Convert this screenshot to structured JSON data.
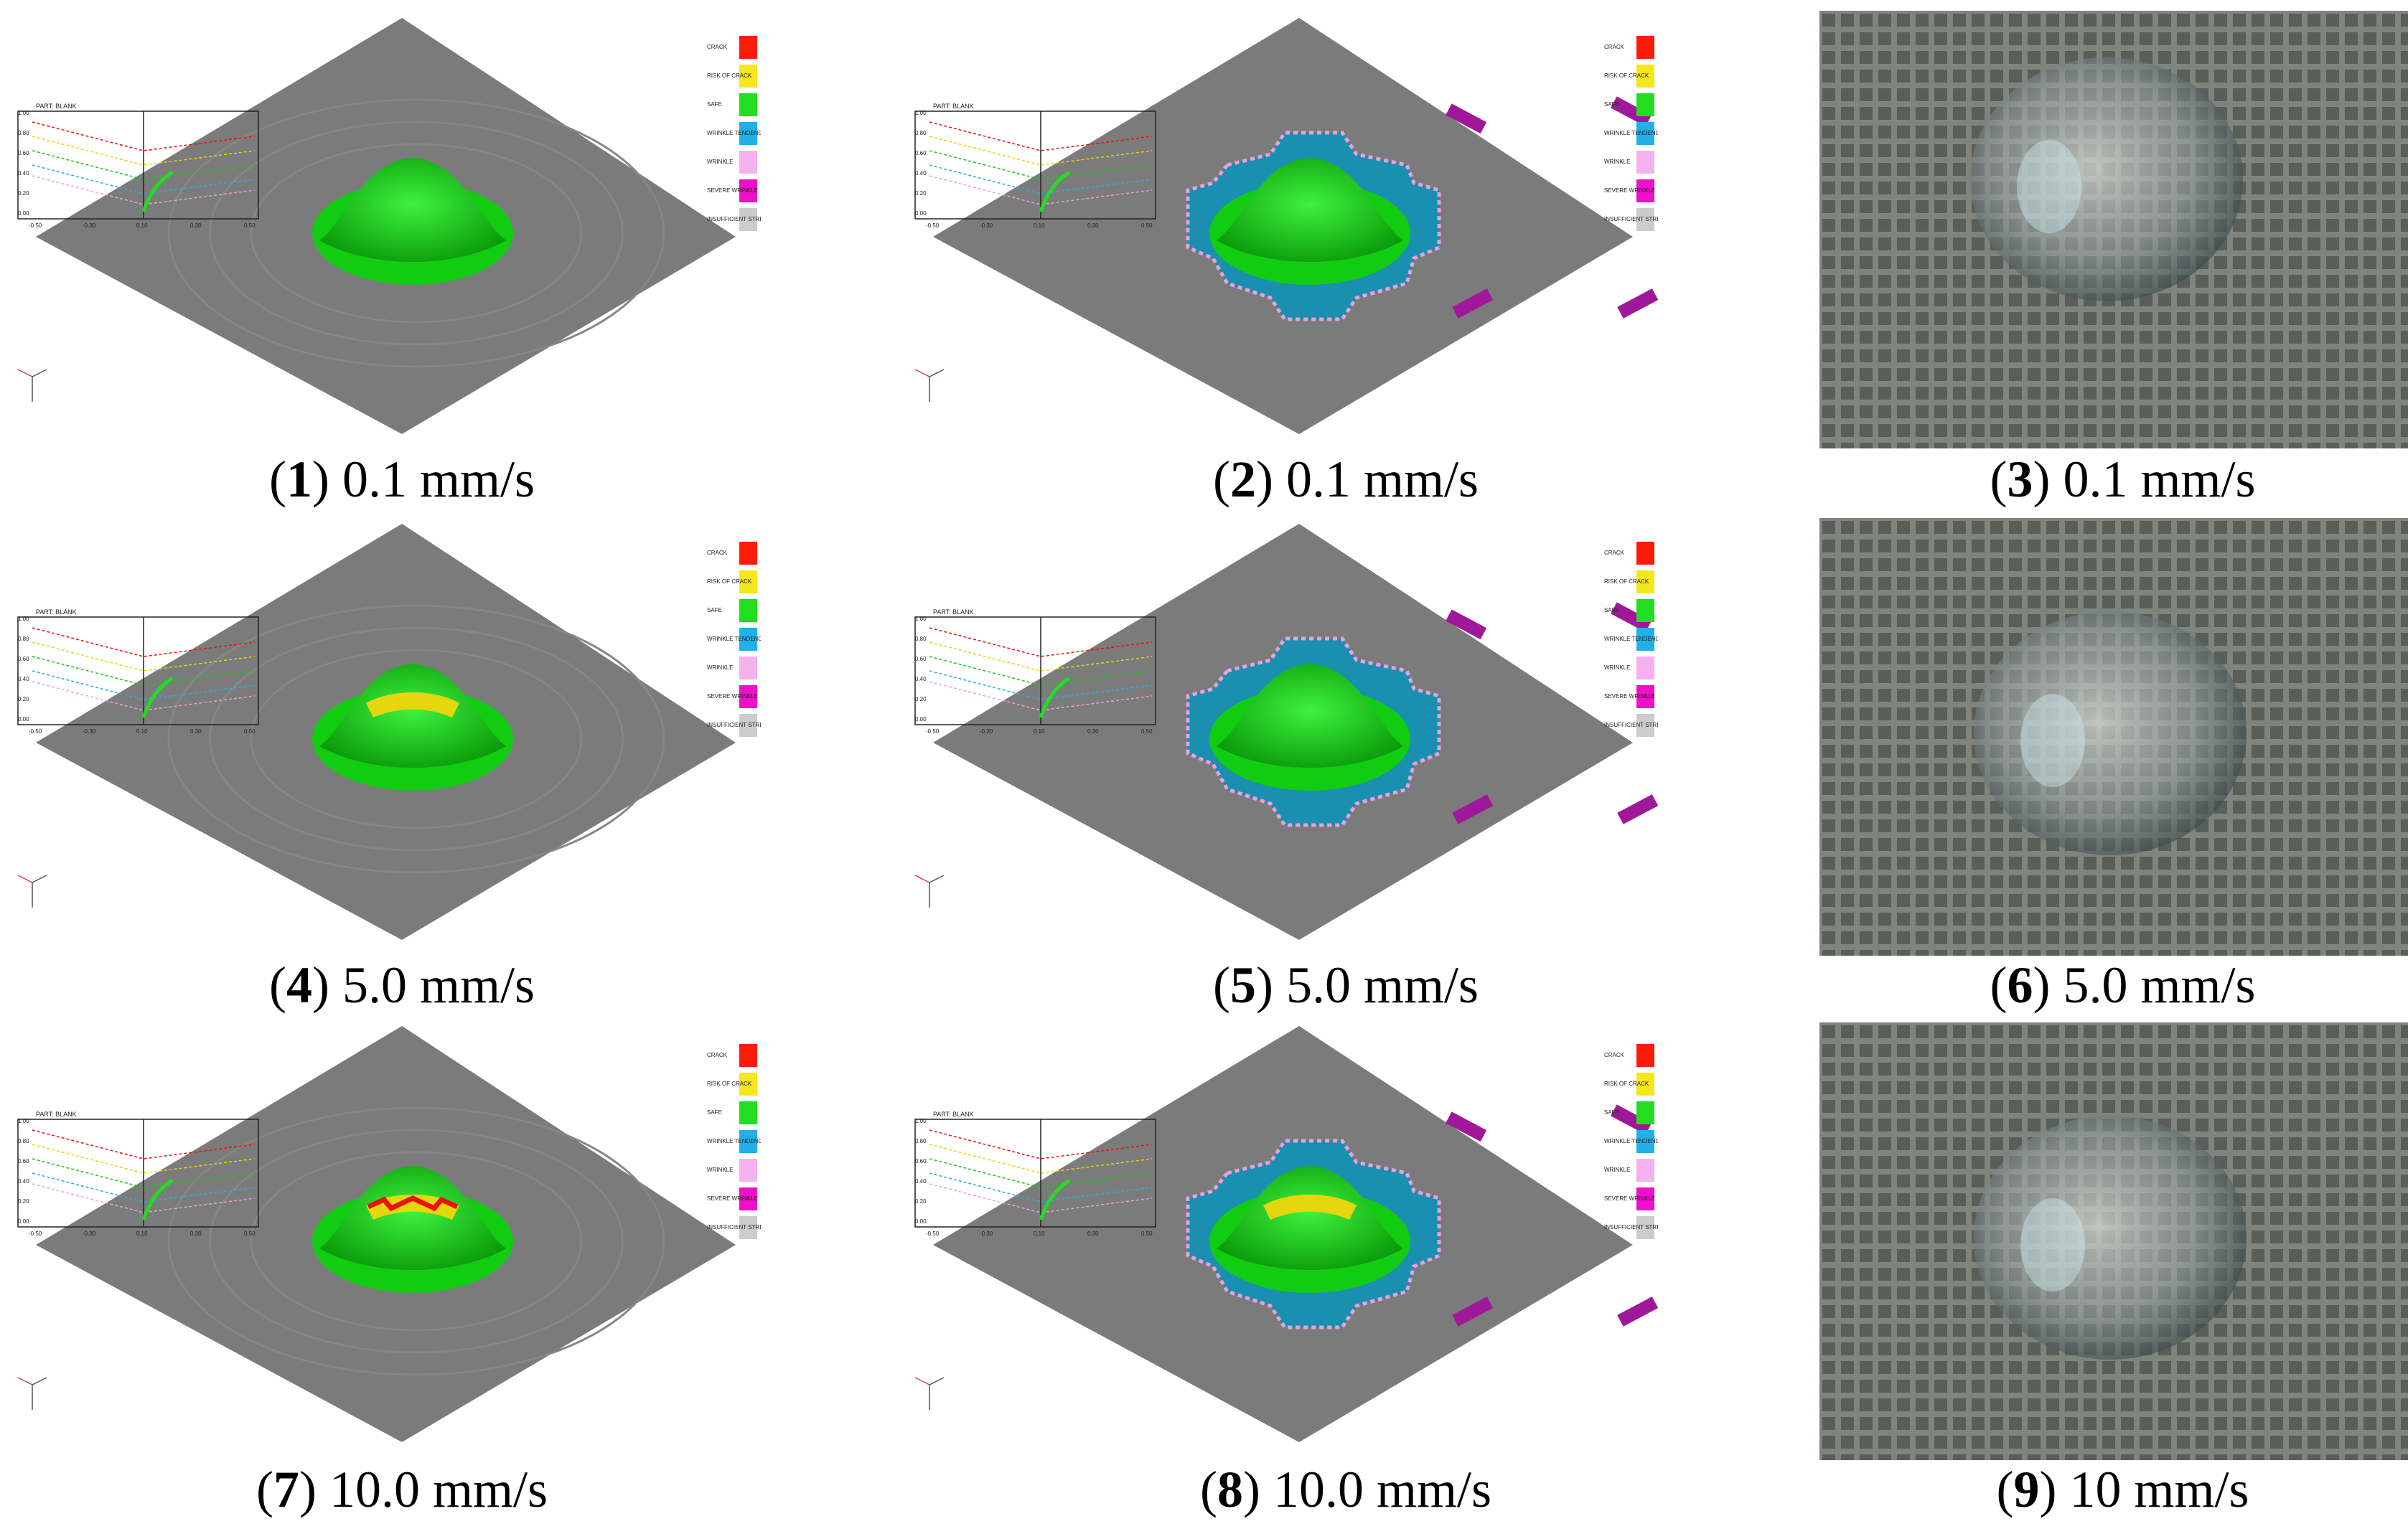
{
  "colors": {
    "plate": "#7b7b7b",
    "plate_edge": "#6d6d6d",
    "safe": "#12cc12",
    "safe_light": "#3ef23e",
    "risk": "#e6d610",
    "crack": "#e8140a",
    "wrinkle_tendency": "#1a8fb0",
    "wrinkle": "#e8a2e0",
    "severe_wrinkle": "#a0189a",
    "insufficient": "#c8c8c8"
  },
  "fld": {
    "title": "PART: BLANK",
    "y_ticks": [
      "1.00",
      "0.80",
      "0.60",
      "0.40",
      "0.20",
      "0.00"
    ],
    "x_ticks": [
      "-0.50",
      "-0.30",
      "0.10",
      "0.30",
      "0.50"
    ]
  },
  "legend": [
    {
      "label": "CRACK",
      "color": "#ff1a0a"
    },
    {
      "label": "RISK OF CRACK",
      "color": "#f5e61e"
    },
    {
      "label": "SAFE",
      "color": "#22dd22"
    },
    {
      "label": "WRINKLE TENDENCY",
      "color": "#22b0e8"
    },
    {
      "label": "WRINKLE",
      "color": "#f5b0ee"
    },
    {
      "label": "SEVERE WRINKLE",
      "color": "#ee10c8"
    },
    {
      "label": "INSUFFICIENT STRETCH",
      "color": "#cccccc"
    }
  ],
  "panels": [
    {
      "num": "1",
      "speed": "0.1 mm/s",
      "kind": "sim",
      "wrinkled": false,
      "dome": "safe"
    },
    {
      "num": "2",
      "speed": "0.1 mm/s",
      "kind": "sim",
      "wrinkled": true,
      "dome": "safe"
    },
    {
      "num": "3",
      "speed": "0.1 mm/s",
      "kind": "photo"
    },
    {
      "num": "4",
      "speed": "5.0 mm/s",
      "kind": "sim",
      "wrinkled": false,
      "dome": "risk"
    },
    {
      "num": "5",
      "speed": "5.0 mm/s",
      "kind": "sim",
      "wrinkled": true,
      "dome": "safe"
    },
    {
      "num": "6",
      "speed": "5.0 mm/s",
      "kind": "photo"
    },
    {
      "num": "7",
      "speed": "10.0 mm/s",
      "kind": "sim",
      "wrinkled": false,
      "dome": "crack"
    },
    {
      "num": "8",
      "speed": "10.0 mm/s",
      "kind": "sim",
      "wrinkled": true,
      "dome": "risk"
    },
    {
      "num": "9",
      "speed": "10 mm/s",
      "kind": "photo"
    }
  ]
}
